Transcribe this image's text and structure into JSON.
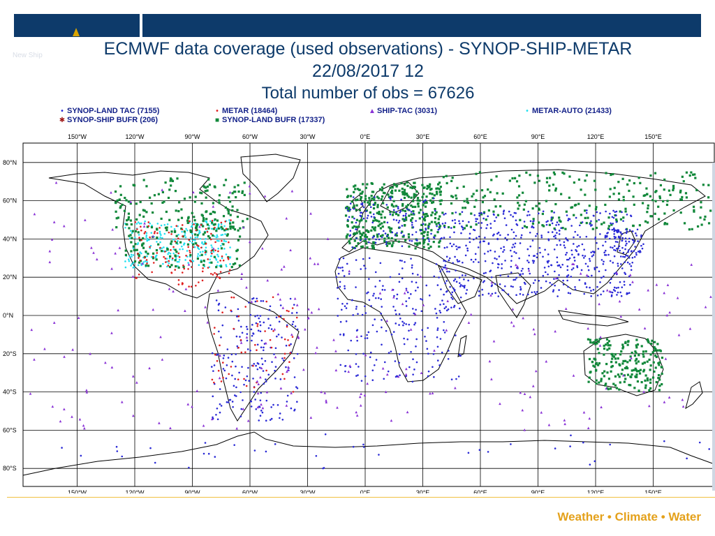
{
  "header": {
    "title": "ECMWF data coverage (used observations) - SYNOP-SHIP-METAR",
    "datetime": "22/08/2017 12",
    "total": "Total number of obs = 67626",
    "ghost_text": "New Ship"
  },
  "legend": [
    {
      "label": "SYNOP-LAND TAC (7155)",
      "symbol": "•",
      "color": "#2a2ad6"
    },
    {
      "label": "METAR (18464)",
      "symbol": "•",
      "color": "#e02020"
    },
    {
      "label": "SHIP-TAC (3031)",
      "symbol": "▲",
      "color": "#8a33d6"
    },
    {
      "label": "METAR-AUTO (21433)",
      "symbol": "•",
      "color": "#22e0f0"
    },
    {
      "label": "SYNOP-SHIP BUFR (206)",
      "symbol": "✱",
      "color": "#a01818"
    },
    {
      "label": "SYNOP-LAND BUFR (17337)",
      "symbol": "■",
      "color": "#11883a"
    }
  ],
  "map": {
    "lon_labels": [
      "150°W",
      "120°W",
      "90°W",
      "60°W",
      "30°W",
      "0°E",
      "30°E",
      "60°E",
      "90°E",
      "120°E",
      "150°E"
    ],
    "lat_labels": [
      "80°N",
      "60°N",
      "40°N",
      "20°N",
      "0°N",
      "20°S",
      "40°S",
      "60°S",
      "80°S"
    ],
    "lons": [
      -150,
      -120,
      -90,
      -60,
      -30,
      0,
      30,
      60,
      90,
      120,
      150
    ],
    "lats": [
      80,
      60,
      40,
      20,
      0,
      -20,
      -40,
      -60,
      -80
    ]
  },
  "footer": {
    "brand": "Weather • Climate • Water"
  },
  "colors": {
    "brand_navy": "#0d3a6a",
    "synop_land_tac": "#2a2ad6",
    "metar": "#e02020",
    "ship_tac": "#8a33d6",
    "metar_auto": "#22e0f0",
    "ship_bufr": "#a01818",
    "land_bufr": "#11883a",
    "footer_gold": "#e4a11b"
  }
}
